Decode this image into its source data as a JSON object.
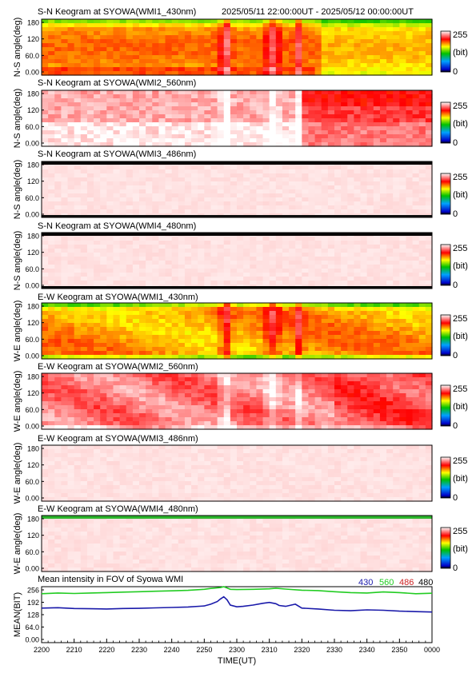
{
  "header": {
    "date_range": "2025/05/11 22:00:00UT - 2025/05/12 00:00:00UT"
  },
  "colorbar": {
    "max_label": "255",
    "unit_label": "(bit)",
    "min_label": "0"
  },
  "chart_data": [
    {
      "type": "heatmap",
      "title": "S-N Keogram at SYOWA(WMI1_430nm)",
      "ylabel": "N-S angle(deg)",
      "yticks": [
        "180",
        "120",
        "60.0",
        "0.00"
      ],
      "colorscale": "rainbow",
      "zlim": [
        0,
        255
      ],
      "style": "430",
      "show_date": true
    },
    {
      "type": "heatmap",
      "title": "S-N Keogram at SYOWA(WMI2_560nm)",
      "ylabel": "N-S angle(deg)",
      "yticks": [
        "180",
        "120",
        "60.0",
        "0.00"
      ],
      "colorscale": "rainbow",
      "zlim": [
        0,
        255
      ],
      "style": "560"
    },
    {
      "type": "heatmap",
      "title": "S-N Keogram at SYOWA(WMI3_486nm)",
      "ylabel": "N-S angle(deg)",
      "yticks": [
        "180",
        "120",
        "60.0",
        "0.00"
      ],
      "colorscale": "rainbow",
      "zlim": [
        0,
        255
      ],
      "style": "pale",
      "edge_top": "#000000",
      "edge_bottom": "#111111"
    },
    {
      "type": "heatmap",
      "title": "S-N Keogram at SYOWA(WMI4_480nm)",
      "ylabel": "N-S angle(deg)",
      "yticks": [
        "180",
        "120",
        "60.0",
        "0.00"
      ],
      "colorscale": "rainbow",
      "zlim": [
        0,
        255
      ],
      "style": "pale",
      "edge_top": "#000000",
      "edge_bottom": "#000000"
    },
    {
      "type": "heatmap",
      "title": "E-W Keogram at SYOWA(WMI1_430nm)",
      "ylabel": "W-E angle(deg)",
      "yticks": [
        "180",
        "120",
        "60.0",
        "0.00"
      ],
      "colorscale": "rainbow",
      "zlim": [
        0,
        255
      ],
      "style": "430ew"
    },
    {
      "type": "heatmap",
      "title": "E-W Keogram at SYOWA(WMI2_560nm)",
      "ylabel": "W-E angle(deg)",
      "yticks": [
        "180",
        "120",
        "60.0",
        "0.00"
      ],
      "colorscale": "rainbow",
      "zlim": [
        0,
        255
      ],
      "style": "560ew"
    },
    {
      "type": "heatmap",
      "title": "E-W Keogram at SYOWA(WMI3_486nm)",
      "ylabel": "W-E angle(deg)",
      "yticks": [
        "180",
        "120",
        "60.0",
        "0.00"
      ],
      "colorscale": "rainbow",
      "zlim": [
        0,
        255
      ],
      "style": "pale"
    },
    {
      "type": "heatmap",
      "title": "E-W Keogram at SYOWA(WMI4_480nm)",
      "ylabel": "W-E angle(deg)",
      "yticks": [
        "180",
        "120",
        "60.0",
        "0.00"
      ],
      "colorscale": "rainbow",
      "zlim": [
        0,
        255
      ],
      "style": "pale",
      "edge_top": "#2db52d"
    },
    {
      "type": "line",
      "title": "Mean intensity in FOV of Syowa WMI",
      "ylabel": "MEAN(BIT)",
      "xlabel": "TIME(UT)",
      "xticks": [
        "2200",
        "2210",
        "2220",
        "2230",
        "2240",
        "2250",
        "2300",
        "2310",
        "2320",
        "2330",
        "2340",
        "2350",
        "0000"
      ],
      "yticks": [
        "256",
        "192",
        "128",
        "64.0",
        "0.00"
      ],
      "xlim_minutes": [
        0,
        120
      ],
      "ylim": [
        0,
        256
      ],
      "legend": [
        {
          "label": "430",
          "color": "#1a1aaa"
        },
        {
          "label": "560",
          "color": "#22cc22"
        },
        {
          "label": "486",
          "color": "#cc2222"
        },
        {
          "label": "480",
          "color": "#000000"
        }
      ],
      "series": [
        {
          "label": "560",
          "color": "#22cc22",
          "t": [
            0,
            5,
            10,
            15,
            20,
            25,
            30,
            35,
            40,
            45,
            50,
            52,
            55,
            56,
            57,
            58,
            60,
            65,
            70,
            72,
            75,
            80,
            85,
            90,
            95,
            100,
            105,
            110,
            115,
            120
          ],
          "values": [
            224,
            227,
            225,
            227,
            229,
            231,
            233,
            235,
            237,
            239,
            244,
            248,
            252,
            256,
            250,
            244,
            243,
            244,
            246,
            249,
            245,
            240,
            238,
            233,
            229,
            227,
            232,
            229,
            224,
            226
          ]
        },
        {
          "label": "430",
          "color": "#1a1aaa",
          "t": [
            0,
            5,
            10,
            15,
            20,
            25,
            30,
            35,
            40,
            45,
            50,
            52,
            54,
            55,
            56,
            57,
            58,
            60,
            62,
            65,
            68,
            70,
            72,
            73,
            75,
            78,
            80,
            85,
            90,
            95,
            100,
            105,
            110,
            115,
            120
          ],
          "values": [
            158,
            160,
            156,
            155,
            154,
            156,
            157,
            159,
            161,
            163,
            168,
            176,
            188,
            200,
            210,
            196,
            172,
            164,
            166,
            172,
            180,
            184,
            178,
            170,
            166,
            176,
            158,
            154,
            148,
            146,
            150,
            148,
            144,
            142,
            140
          ]
        }
      ]
    }
  ]
}
